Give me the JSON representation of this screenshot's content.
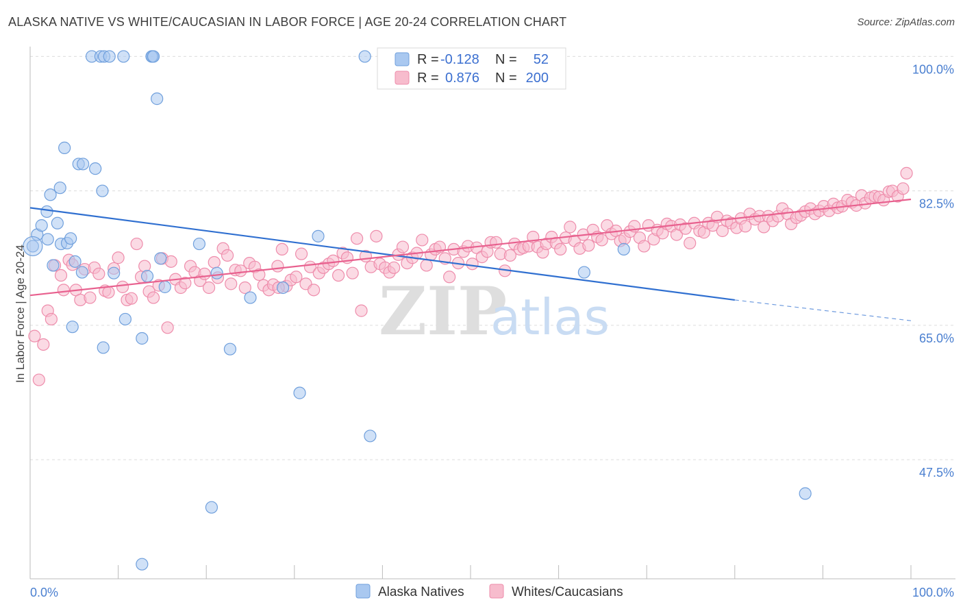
{
  "title": "ALASKA NATIVE VS WHITE/CAUCASIAN IN LABOR FORCE | AGE 20-24 CORRELATION CHART",
  "source": "Source: ZipAtlas.com",
  "watermark": {
    "zip": "ZIP",
    "atlas": "atlas"
  },
  "chart_data": {
    "type": "scatter",
    "xlabel": "",
    "ylabel": "In Labor Force | Age 20-24",
    "xlim": [
      0,
      100
    ],
    "ylim": [
      32,
      102
    ],
    "x_tick_labels": [
      {
        "value": 0,
        "label": "0.0%"
      },
      {
        "value": 100,
        "label": "100.0%"
      }
    ],
    "y_ticks": [
      {
        "value": 100,
        "label": "100.0%"
      },
      {
        "value": 82.5,
        "label": "82.5%"
      },
      {
        "value": 65,
        "label": "65.0%"
      },
      {
        "value": 47.5,
        "label": "47.5%"
      }
    ],
    "grid": true,
    "legend": {
      "placement": "top-center",
      "rows": [
        {
          "r_label": "R =",
          "r_value": "-0.128",
          "n_label": "N =",
          "n_value": "52"
        },
        {
          "r_label": "R =",
          "r_value": "0.876",
          "n_label": "N =",
          "n_value": "200"
        }
      ]
    },
    "series": [
      {
        "name": "Alaska Natives",
        "color_fill": "#a9c8f0",
        "color_stroke": "#6f9fdc",
        "trend_color": "#2f6fd0",
        "trend": {
          "x0": 0,
          "y0": 80.3,
          "x1": 80,
          "y1": 68.3,
          "x_dash_end": 100,
          "y_dash_end": 65.6
        },
        "points": [
          [
            0.3,
            75.3
          ],
          [
            0.8,
            76.8
          ],
          [
            1.3,
            78.0
          ],
          [
            1.9,
            79.8
          ],
          [
            2.0,
            76.2
          ],
          [
            2.3,
            82.0
          ],
          [
            2.6,
            72.8
          ],
          [
            3.1,
            78.3
          ],
          [
            3.4,
            82.9
          ],
          [
            3.5,
            75.6
          ],
          [
            3.9,
            88.1
          ],
          [
            4.2,
            75.7
          ],
          [
            4.6,
            76.3
          ],
          [
            4.8,
            64.8
          ],
          [
            5.1,
            73.3
          ],
          [
            5.5,
            86.0
          ],
          [
            5.9,
            71.9
          ],
          [
            6.0,
            86.0
          ],
          [
            7.4,
            85.4
          ],
          [
            8.2,
            82.5
          ],
          [
            8.3,
            62.1
          ],
          [
            9.5,
            71.8
          ],
          [
            10.8,
            65.8
          ],
          [
            12.7,
            63.3
          ],
          [
            13.3,
            71.4
          ],
          [
            13.9,
            100.0
          ],
          [
            14.8,
            73.7
          ],
          [
            15.3,
            70.0
          ],
          [
            7.0,
            100.0
          ],
          [
            8.0,
            100.0
          ],
          [
            8.4,
            100.0
          ],
          [
            9.0,
            100.0
          ],
          [
            10.6,
            100.0
          ],
          [
            13.8,
            100.0
          ],
          [
            14.4,
            94.5
          ],
          [
            19.2,
            75.6
          ],
          [
            20.6,
            41.3
          ],
          [
            21.2,
            71.8
          ],
          [
            22.7,
            61.9
          ],
          [
            25.0,
            68.6
          ],
          [
            28.7,
            69.9
          ],
          [
            30.6,
            56.2
          ],
          [
            32.7,
            76.6
          ],
          [
            38.0,
            100.0
          ],
          [
            38.6,
            50.6
          ],
          [
            44.6,
            100.0
          ],
          [
            62.9,
            71.9
          ],
          [
            67.4,
            74.9
          ],
          [
            88.0,
            43.1
          ],
          [
            12.7,
            33.9
          ],
          [
            14.0,
            100.0
          ],
          [
            44.0,
            100.0
          ]
        ]
      },
      {
        "name": "Whites/Caucasians",
        "color_fill": "#f7bccd",
        "color_stroke": "#ee8cab",
        "trend_color": "#e8608e",
        "trend": {
          "x0": 0,
          "y0": 68.9,
          "x1": 100,
          "y1": 81.4
        },
        "points": [
          [
            0.5,
            63.6
          ],
          [
            1.0,
            57.9
          ],
          [
            1.5,
            62.5
          ],
          [
            2.0,
            66.9
          ],
          [
            2.4,
            65.8
          ],
          [
            2.8,
            72.8
          ],
          [
            3.5,
            71.5
          ],
          [
            3.8,
            69.6
          ],
          [
            4.4,
            73.5
          ],
          [
            4.8,
            72.9
          ],
          [
            5.2,
            69.6
          ],
          [
            5.7,
            68.3
          ],
          [
            6.2,
            72.3
          ],
          [
            6.8,
            68.6
          ],
          [
            7.3,
            72.5
          ],
          [
            7.8,
            71.7
          ],
          [
            8.5,
            69.5
          ],
          [
            8.9,
            69.3
          ],
          [
            9.5,
            72.4
          ],
          [
            10.0,
            73.8
          ],
          [
            10.5,
            70.0
          ],
          [
            11.0,
            68.3
          ],
          [
            11.5,
            68.5
          ],
          [
            12.1,
            75.6
          ],
          [
            12.6,
            71.3
          ],
          [
            13.0,
            72.7
          ],
          [
            13.5,
            69.4
          ],
          [
            14.0,
            68.6
          ],
          [
            14.6,
            70.2
          ],
          [
            15.0,
            73.7
          ],
          [
            15.6,
            64.7
          ],
          [
            16.0,
            73.3
          ],
          [
            16.5,
            71.0
          ],
          [
            17.1,
            69.9
          ],
          [
            17.6,
            70.5
          ],
          [
            18.2,
            72.7
          ],
          [
            18.7,
            71.9
          ],
          [
            19.3,
            70.8
          ],
          [
            19.8,
            71.7
          ],
          [
            20.3,
            69.9
          ],
          [
            20.9,
            73.2
          ],
          [
            21.3,
            71.2
          ],
          [
            21.9,
            75.0
          ],
          [
            22.4,
            74.1
          ],
          [
            22.8,
            70.4
          ],
          [
            23.3,
            72.2
          ],
          [
            23.9,
            72.1
          ],
          [
            24.4,
            69.9
          ],
          [
            24.9,
            73.1
          ],
          [
            25.5,
            72.6
          ],
          [
            26.0,
            71.6
          ],
          [
            26.5,
            70.2
          ],
          [
            27.1,
            69.6
          ],
          [
            27.6,
            70.3
          ],
          [
            28.1,
            72.7
          ],
          [
            28.6,
            74.9
          ],
          [
            29.1,
            70.1
          ],
          [
            29.6,
            70.9
          ],
          [
            30.2,
            71.3
          ],
          [
            30.8,
            74.3
          ],
          [
            31.3,
            70.4
          ],
          [
            31.8,
            72.6
          ],
          [
            32.2,
            69.6
          ],
          [
            32.8,
            71.8
          ],
          [
            33.3,
            72.5
          ],
          [
            33.9,
            73.0
          ],
          [
            34.4,
            73.4
          ],
          [
            35.0,
            71.5
          ],
          [
            35.5,
            74.4
          ],
          [
            36.0,
            73.8
          ],
          [
            36.6,
            71.8
          ],
          [
            37.1,
            76.3
          ],
          [
            37.6,
            66.9
          ],
          [
            38.1,
            74.0
          ],
          [
            38.7,
            72.6
          ],
          [
            39.3,
            76.6
          ],
          [
            39.7,
            73.0
          ],
          [
            40.3,
            72.5
          ],
          [
            40.8,
            71.9
          ],
          [
            41.3,
            72.5
          ],
          [
            41.8,
            74.2
          ],
          [
            42.3,
            75.2
          ],
          [
            42.8,
            73.1
          ],
          [
            43.4,
            73.8
          ],
          [
            43.9,
            74.4
          ],
          [
            44.5,
            76.1
          ],
          [
            45.0,
            72.8
          ],
          [
            45.5,
            74.2
          ],
          [
            46.0,
            74.9
          ],
          [
            46.5,
            75.2
          ],
          [
            47.1,
            73.7
          ],
          [
            47.6,
            71.3
          ],
          [
            48.1,
            74.9
          ],
          [
            48.6,
            73.1
          ],
          [
            49.2,
            74.6
          ],
          [
            49.7,
            75.3
          ],
          [
            50.2,
            73.0
          ],
          [
            50.7,
            75.1
          ],
          [
            51.3,
            73.9
          ],
          [
            51.9,
            74.6
          ],
          [
            52.3,
            75.8
          ],
          [
            52.9,
            75.8
          ],
          [
            53.4,
            74.3
          ],
          [
            53.9,
            72.1
          ],
          [
            54.5,
            74.1
          ],
          [
            55.0,
            75.6
          ],
          [
            55.6,
            74.9
          ],
          [
            56.0,
            75.1
          ],
          [
            56.6,
            75.3
          ],
          [
            57.1,
            76.5
          ],
          [
            57.6,
            75.2
          ],
          [
            58.2,
            74.5
          ],
          [
            58.6,
            75.6
          ],
          [
            59.2,
            76.5
          ],
          [
            59.7,
            75.7
          ],
          [
            60.2,
            74.9
          ],
          [
            60.8,
            76.4
          ],
          [
            61.3,
            77.8
          ],
          [
            61.8,
            76.0
          ],
          [
            62.4,
            75.0
          ],
          [
            62.8,
            76.8
          ],
          [
            63.4,
            75.4
          ],
          [
            63.9,
            77.4
          ],
          [
            64.4,
            76.5
          ],
          [
            64.9,
            76.1
          ],
          [
            65.5,
            78.0
          ],
          [
            66.0,
            76.9
          ],
          [
            66.5,
            77.3
          ],
          [
            67.0,
            76.0
          ],
          [
            67.5,
            76.3
          ],
          [
            68.1,
            77.2
          ],
          [
            68.6,
            77.9
          ],
          [
            69.2,
            76.4
          ],
          [
            69.7,
            75.3
          ],
          [
            70.2,
            78.0
          ],
          [
            70.8,
            76.2
          ],
          [
            71.2,
            77.4
          ],
          [
            71.8,
            77.0
          ],
          [
            72.3,
            78.2
          ],
          [
            72.8,
            77.9
          ],
          [
            73.4,
            76.8
          ],
          [
            73.8,
            78.1
          ],
          [
            74.4,
            77.6
          ],
          [
            74.9,
            75.7
          ],
          [
            75.4,
            78.3
          ],
          [
            76.0,
            77.3
          ],
          [
            76.5,
            77.1
          ],
          [
            77.0,
            78.3
          ],
          [
            77.5,
            78.0
          ],
          [
            78.0,
            79.1
          ],
          [
            78.6,
            77.3
          ],
          [
            79.1,
            78.6
          ],
          [
            79.6,
            78.3
          ],
          [
            80.2,
            77.7
          ],
          [
            80.7,
            78.9
          ],
          [
            81.2,
            77.9
          ],
          [
            81.7,
            79.5
          ],
          [
            82.3,
            78.8
          ],
          [
            82.8,
            79.2
          ],
          [
            83.3,
            77.8
          ],
          [
            83.8,
            79.2
          ],
          [
            84.3,
            78.6
          ],
          [
            84.9,
            79.2
          ],
          [
            85.4,
            80.2
          ],
          [
            86.0,
            79.5
          ],
          [
            86.4,
            78.2
          ],
          [
            87.0,
            79.0
          ],
          [
            87.5,
            79.3
          ],
          [
            88.0,
            79.8
          ],
          [
            88.6,
            80.2
          ],
          [
            89.1,
            79.5
          ],
          [
            89.6,
            79.9
          ],
          [
            90.1,
            80.5
          ],
          [
            90.7,
            79.9
          ],
          [
            91.2,
            80.8
          ],
          [
            91.7,
            80.3
          ],
          [
            92.2,
            80.5
          ],
          [
            92.8,
            81.3
          ],
          [
            93.3,
            81.0
          ],
          [
            93.8,
            80.6
          ],
          [
            94.4,
            81.9
          ],
          [
            94.8,
            80.9
          ],
          [
            95.4,
            81.6
          ],
          [
            95.9,
            81.8
          ],
          [
            96.4,
            81.7
          ],
          [
            96.9,
            81.3
          ],
          [
            97.5,
            82.4
          ],
          [
            97.9,
            82.5
          ],
          [
            98.5,
            81.8
          ],
          [
            99.1,
            82.8
          ],
          [
            99.5,
            84.8
          ],
          [
            28.2,
            69.9
          ]
        ]
      }
    ]
  }
}
